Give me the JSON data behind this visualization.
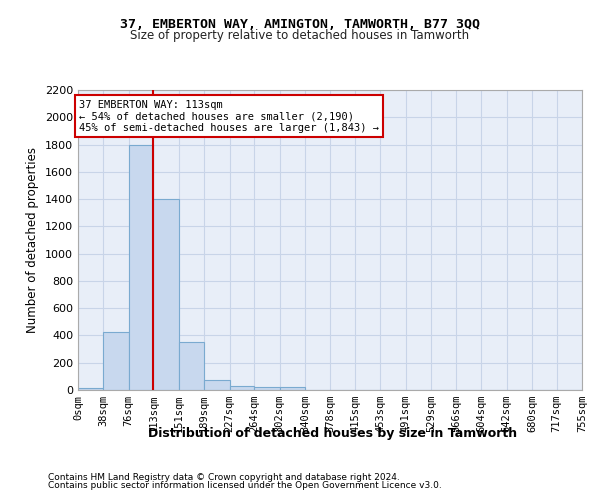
{
  "title_line1": "37, EMBERTON WAY, AMINGTON, TAMWORTH, B77 3QQ",
  "title_line2": "Size of property relative to detached houses in Tamworth",
  "xlabel": "Distribution of detached houses by size in Tamworth",
  "ylabel": "Number of detached properties",
  "footnote1": "Contains HM Land Registry data © Crown copyright and database right 2024.",
  "footnote2": "Contains public sector information licensed under the Open Government Licence v3.0.",
  "property_line1": "37 EMBERTON WAY: 113sqm",
  "property_line2": "← 54% of detached houses are smaller (2,190)",
  "property_line3": "45% of semi-detached houses are larger (1,843) →",
  "property_size": 113,
  "bin_edges": [
    0,
    38,
    76,
    113,
    151,
    189,
    227,
    264,
    302,
    340,
    378,
    415,
    453,
    491,
    529,
    566,
    604,
    642,
    680,
    717,
    755
  ],
  "bin_counts": [
    15,
    425,
    1800,
    1400,
    350,
    75,
    30,
    20,
    20,
    0,
    0,
    0,
    0,
    0,
    0,
    0,
    0,
    0,
    0,
    0
  ],
  "bar_color": "#c8d8ee",
  "bar_edge_color": "#7aaad0",
  "vline_color": "#cc0000",
  "vline_x": 113,
  "annotation_box_color": "#cc0000",
  "grid_color": "#c8d4e8",
  "background_color": "#e8eef8",
  "ylim": [
    0,
    2200
  ],
  "yticks": [
    0,
    200,
    400,
    600,
    800,
    1000,
    1200,
    1400,
    1600,
    1800,
    2000,
    2200
  ]
}
